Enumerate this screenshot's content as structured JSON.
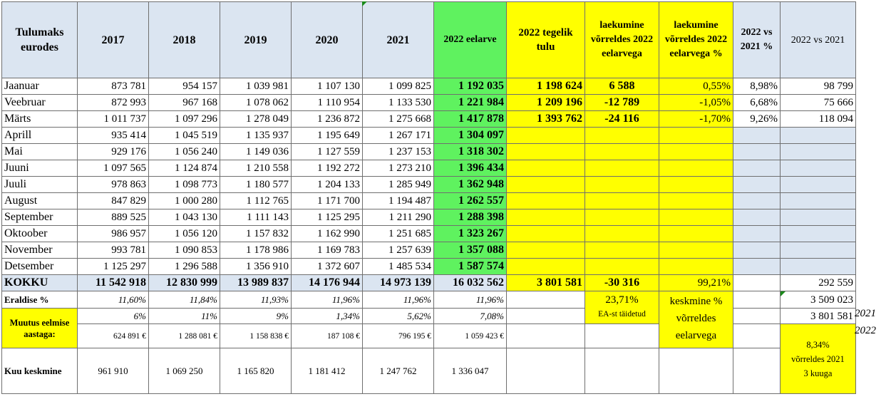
{
  "headers": {
    "label": "Tulumaks eurodes",
    "years": [
      "2017",
      "2018",
      "2019",
      "2020",
      "2021"
    ],
    "budget": "2022 eelarve",
    "actual": "2022 tegelik tulu",
    "vs_budget": "laekumine võrreldes 2022 eelarvega",
    "vs_budget_pct": "laekumine võrreldes 2022 eelarvega %",
    "vs2021_pct": "2022 vs 2021 %",
    "vs2021": "2022 vs 2021"
  },
  "months": [
    {
      "name": "Jaanuar",
      "y2017": "873 781",
      "y2018": "954 157",
      "y2019": "1 039 981",
      "y2020": "1 107 130",
      "y2021": "1 099 825",
      "budget": "1 192 035",
      "actual": "1 198 624",
      "diff": "6 588",
      "diff_pct": "0,55%",
      "vs2021_pct": "8,98%",
      "vs2021": "98 799"
    },
    {
      "name": "Veebruar",
      "y2017": "872 993",
      "y2018": "967 168",
      "y2019": "1 078 062",
      "y2020": "1 110 954",
      "y2021": "1 133 530",
      "budget": "1 221 984",
      "actual": "1 209 196",
      "diff": "-12 789",
      "diff_pct": "-1,05%",
      "vs2021_pct": "6,68%",
      "vs2021": "75 666"
    },
    {
      "name": "Märts",
      "y2017": "1 011 737",
      "y2018": "1 097 296",
      "y2019": "1 278 049",
      "y2020": "1 236 872",
      "y2021": "1 275 668",
      "budget": "1 417 878",
      "actual": "1 393 762",
      "diff": "-24 116",
      "diff_pct": "-1,70%",
      "vs2021_pct": "9,26%",
      "vs2021": "118 094"
    },
    {
      "name": "Aprill",
      "y2017": "935 414",
      "y2018": "1 045 519",
      "y2019": "1 135 937",
      "y2020": "1 195 649",
      "y2021": "1 267 171",
      "budget": "1 304 097",
      "actual": "",
      "diff": "",
      "diff_pct": "",
      "vs2021_pct": "",
      "vs2021": ""
    },
    {
      "name": "Mai",
      "y2017": "929 176",
      "y2018": "1 056 240",
      "y2019": "1 149 036",
      "y2020": "1 127 559",
      "y2021": "1 237 153",
      "budget": "1 318 302",
      "actual": "",
      "diff": "",
      "diff_pct": "",
      "vs2021_pct": "",
      "vs2021": ""
    },
    {
      "name": "Juuni",
      "y2017": "1 097 565",
      "y2018": "1 124 874",
      "y2019": "1 210 558",
      "y2020": "1 192 272",
      "y2021": "1 273 210",
      "budget": "1 396 434",
      "actual": "",
      "diff": "",
      "diff_pct": "",
      "vs2021_pct": "",
      "vs2021": ""
    },
    {
      "name": "Juuli",
      "y2017": "978 863",
      "y2018": "1 098 773",
      "y2019": "1 180 577",
      "y2020": "1 204 133",
      "y2021": "1 285 949",
      "budget": "1 362 948",
      "actual": "",
      "diff": "",
      "diff_pct": "",
      "vs2021_pct": "",
      "vs2021": ""
    },
    {
      "name": "August",
      "y2017": "847 829",
      "y2018": "1 000 280",
      "y2019": "1 112 765",
      "y2020": "1 171 700",
      "y2021": "1 194 487",
      "budget": "1 262 557",
      "actual": "",
      "diff": "",
      "diff_pct": "",
      "vs2021_pct": "",
      "vs2021": ""
    },
    {
      "name": "September",
      "y2017": "889 525",
      "y2018": "1 043 130",
      "y2019": "1 111 143",
      "y2020": "1 125 295",
      "y2021": "1 211 290",
      "budget": "1 288 398",
      "actual": "",
      "diff": "",
      "diff_pct": "",
      "vs2021_pct": "",
      "vs2021": ""
    },
    {
      "name": "Oktoober",
      "y2017": "986 957",
      "y2018": "1 056 120",
      "y2019": "1 157 832",
      "y2020": "1 162 990",
      "y2021": "1 251 685",
      "budget": "1 323 267",
      "actual": "",
      "diff": "",
      "diff_pct": "",
      "vs2021_pct": "",
      "vs2021": ""
    },
    {
      "name": "November",
      "y2017": "993 781",
      "y2018": "1 090 853",
      "y2019": "1 178 986",
      "y2020": "1 169 783",
      "y2021": "1 257 639",
      "budget": "1 357 088",
      "actual": "",
      "diff": "",
      "diff_pct": "",
      "vs2021_pct": "",
      "vs2021": ""
    },
    {
      "name": "Detsember",
      "y2017": "1 125 297",
      "y2018": "1 296 588",
      "y2019": "1 356 910",
      "y2020": "1 372 607",
      "y2021": "1 485 534",
      "budget": "1 587 574",
      "actual": "",
      "diff": "",
      "diff_pct": "",
      "vs2021_pct": "",
      "vs2021": ""
    }
  ],
  "total": {
    "name": "KOKKU",
    "y2017": "11 542 918",
    "y2018": "12 830 999",
    "y2019": "13 989 837",
    "y2020": "14 176 944",
    "y2021": "14 973 139",
    "budget": "16 032 562",
    "actual": "3 801 581",
    "diff": "-30 316",
    "diff_pct": "99,21%",
    "vs2021": "292 559"
  },
  "eraldise": {
    "name": "Eraldise %",
    "y2017": "11,60%",
    "y2018": "11,84%",
    "y2019": "11,93%",
    "y2020": "11,96%",
    "y2021": "11,96%",
    "budget": "11,96%",
    "pct": "23,71%",
    "pct_note": "EA-st täidetud",
    "avg_label": "keskmine % võrreldes eelarvega",
    "sum2021": "3 509 023",
    "sum2021_year": "2021",
    "sum2022": "3 801 581",
    "sum2022_year": "2022"
  },
  "muutus": {
    "name": "Muutus eelmise aastaga:",
    "pct": {
      "y2017": "6%",
      "y2018": "11%",
      "y2019": "9%",
      "y2020": "1,34%",
      "y2021": "5,62%",
      "budget": "7,08%"
    },
    "abs": {
      "y2017": "624 891 €",
      "y2018": "1 288 081 €",
      "y2019": "1 158 838 €",
      "y2020": "187 108 €",
      "y2021": "796 195 €",
      "budget": "1 059 423 €"
    }
  },
  "kuu": {
    "name": "Kuu keskmine",
    "y2017": "961 910",
    "y2018": "1 069 250",
    "y2019": "1 165 820",
    "y2020": "1 181 412",
    "y2021": "1 247 762",
    "budget": "1 336 047",
    "note_pct": "8,34%",
    "note_line1": "võrreldes 2021",
    "note_line2": "3 kuuga"
  }
}
